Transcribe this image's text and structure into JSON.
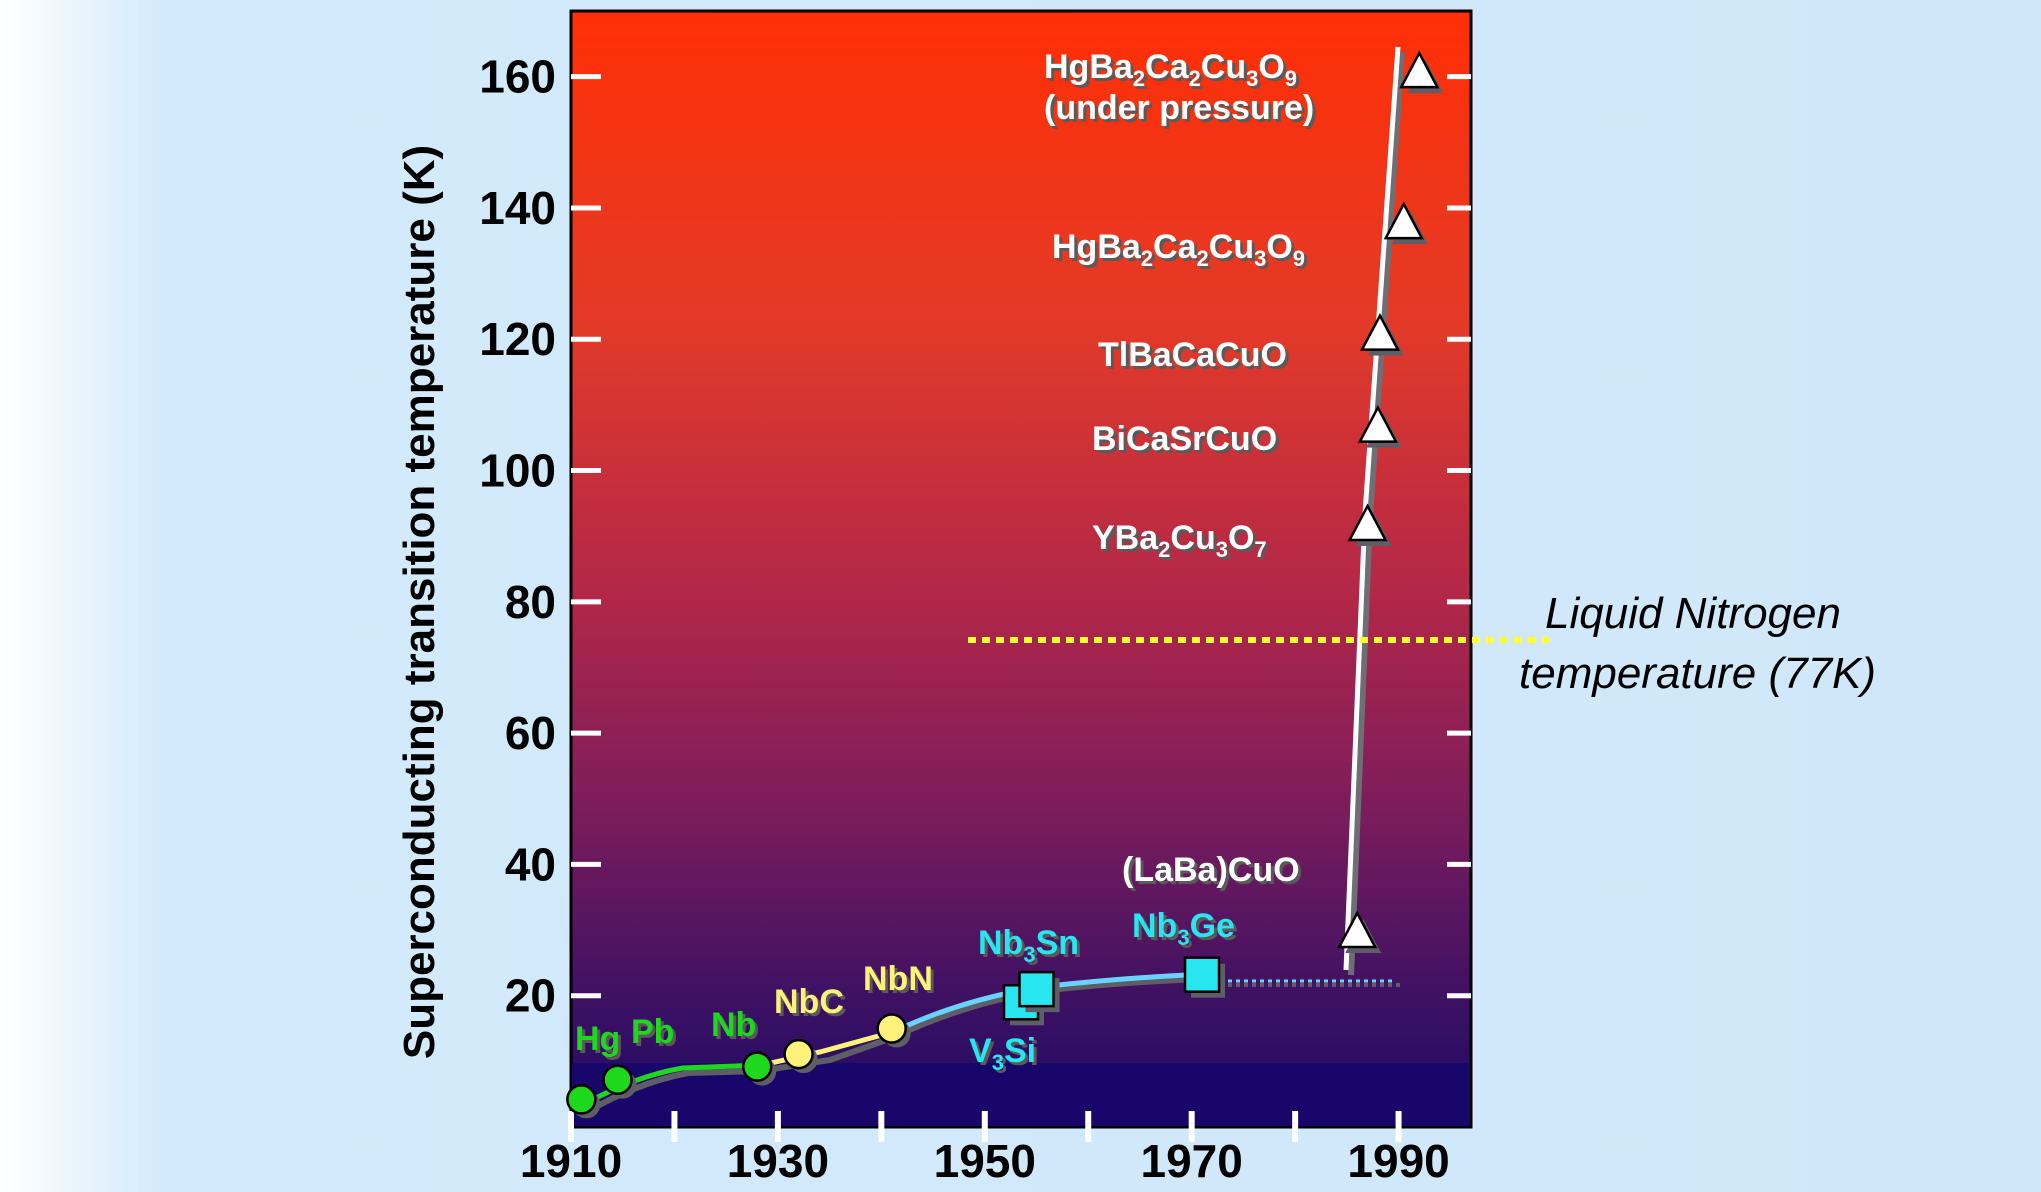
{
  "chart_data": {
    "type": "scatter",
    "ylabel": "Superconducting transition temperature (K)",
    "xlim": [
      1910,
      1997
    ],
    "ylim": [
      0,
      170
    ],
    "x_ticks": [
      1910,
      1930,
      1950,
      1970,
      1990
    ],
    "x_minor_ticks": [
      1920,
      1940,
      1960,
      1980
    ],
    "y_ticks": [
      20,
      40,
      60,
      80,
      100,
      120,
      140,
      160
    ],
    "series": [
      {
        "color": "#1ed81e",
        "marker": "circle",
        "points": [
          {
            "label": "Hg",
            "x": 1911,
            "y": 4.2
          },
          {
            "label": "Pb",
            "x": 1914.5,
            "y": 7.2
          },
          {
            "label": "Nb",
            "x": 1928,
            "y": 9.2
          }
        ]
      },
      {
        "color": "#fff27a",
        "marker": "circle",
        "points": [
          {
            "label": "NbC",
            "x": 1932,
            "y": 11.1
          },
          {
            "label": "NbN",
            "x": 1941,
            "y": 15
          }
        ]
      },
      {
        "color": "#27e6ef",
        "marker": "square",
        "points": [
          {
            "label": "V3Si",
            "x": 1953.5,
            "y": 19
          },
          {
            "label": "Nb3Sn",
            "x": 1955,
            "y": 21
          },
          {
            "label": "Nb3Ge",
            "x": 1971,
            "y": 23.2
          }
        ]
      },
      {
        "color": "#ffffff",
        "marker": "triangle",
        "points": [
          {
            "label": "(LaBa)CuO",
            "x": 1986,
            "y": 30
          },
          {
            "label": "YBa2Cu3O7",
            "x": 1987,
            "y": 92
          },
          {
            "label": "BiCaSrCuO",
            "x": 1988,
            "y": 107
          },
          {
            "label": "TlBaCaCuO",
            "x": 1988.2,
            "y": 121
          },
          {
            "label": "HgBa2Ca2Cu3O9",
            "x": 1990.5,
            "y": 138
          },
          {
            "label": "HgBa2Ca2Cu3O9 (under pressure)",
            "x": 1992,
            "y": 161
          }
        ]
      }
    ],
    "reference_line": {
      "y": 77,
      "label_line1": "Liquid Nitrogen",
      "label_line2": "temperature (77K)",
      "color": "#ffff33"
    }
  },
  "labels": {
    "hg": "Hg",
    "pb": "Pb",
    "nb": "Nb",
    "nbc": "NbC",
    "nbn": "NbN",
    "v3si_a": "V",
    "v3si_sub": "3",
    "v3si_b": "Si",
    "nb3sn_a": "Nb",
    "nb3sn_sub": "3",
    "nb3sn_b": "Sn",
    "nb3ge_a": "Nb",
    "nb3ge_sub": "3",
    "nb3ge_b": "Ge",
    "laba": "(LaBa)CuO",
    "ybco_a": "YBa",
    "ybco_s1": "2",
    "ybco_b": "Cu",
    "ybco_s2": "3",
    "ybco_c": "O",
    "ybco_s3": "7",
    "bscco": "BiCaSrCuO",
    "tbcco": "TlBaCaCuO",
    "hg1_a": "HgBa",
    "hg1_s1": "2",
    "hg1_b": "Ca",
    "hg1_s2": "2",
    "hg1_c": "Cu",
    "hg1_s3": "3",
    "hg1_d": "O",
    "hg1_s4": "9",
    "hg2_a": "HgBa",
    "hg2_s1": "2",
    "hg2_b": "Ca",
    "hg2_s2": "2",
    "hg2_c": "Cu",
    "hg2_s3": "3",
    "hg2_d": "O",
    "hg2_s4": "9",
    "hg2_line2": "(under pressure)"
  }
}
